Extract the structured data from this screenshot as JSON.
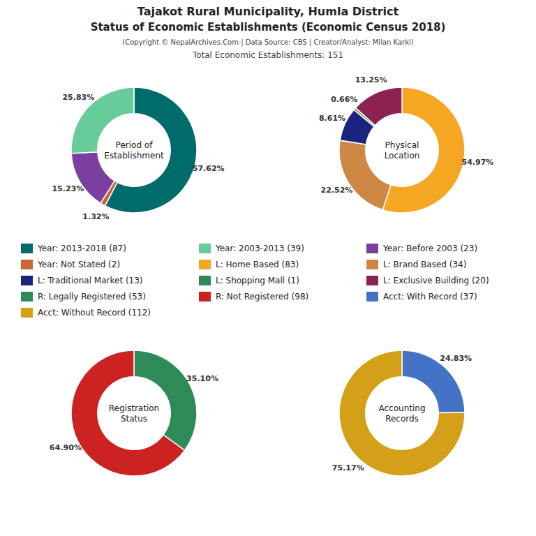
{
  "title": "Tajakot Rural Municipality, Humla District",
  "subtitle": "Status of Economic Establishments (Economic Census 2018)",
  "annotations": [
    "(Copyright © NepalArchives.Com | Data Source: CBS | Creator/Analyst: Milan Karki)",
    "Total Economic Establishments: 151"
  ],
  "legend_entries": [
    {
      "name": "Year: 2013-2018 (87)",
      "color": "#006B6B"
    },
    {
      "name": "Year: Not Stated (2)",
      "color": "#CC6633"
    },
    {
      "name": "L: Traditional Market (13)",
      "color": "#1A237E"
    },
    {
      "name": "R: Legally Registered (53)",
      "color": "#2E8B57"
    },
    {
      "name": "Acct: Without Record (112)",
      "color": "#D4A017"
    },
    {
      "name": "Year: 2003-2013 (39)",
      "color": "#66CC99"
    },
    {
      "name": "L: Home Based (83)",
      "color": "#F5A623"
    },
    {
      "name": "L: Shopping Mall (1)",
      "color": "#2E8B57"
    },
    {
      "name": "R: Not Registered (98)",
      "color": "#CC2222"
    },
    {
      "name": "Year: Before 2003 (23)",
      "color": "#7B3FA0"
    },
    {
      "name": "L: Brand Based (34)",
      "color": "#CC8844"
    },
    {
      "name": "L: Exclusive Building (20)",
      "color": "#8B2252"
    },
    {
      "name": "Acct: With Record (37)",
      "color": "#4472C4"
    }
  ],
  "chart_data": [
    {
      "type": "donut",
      "title": "Period of\nEstablishment",
      "values": [
        57.62,
        1.32,
        15.23,
        25.83
      ],
      "value_labels": [
        "57.62%",
        "1.32%",
        "15.23%",
        "25.83%"
      ],
      "colors": [
        "#006B6B",
        "#CC6633",
        "#7B3FA0",
        "#66CC99"
      ],
      "data_labels": true
    },
    {
      "type": "donut",
      "title": "Physical\nLocation",
      "values": [
        54.97,
        22.52,
        8.61,
        0.66,
        13.25
      ],
      "value_labels": [
        "54.97%",
        "22.52%",
        "8.61%",
        "0.66%",
        "13.25%"
      ],
      "colors": [
        "#F5A623",
        "#CC8844",
        "#1A237E",
        "#4CAF50",
        "#8B2252"
      ],
      "data_labels": true
    },
    {
      "type": "donut",
      "title": "Registration\nStatus",
      "values": [
        35.1,
        64.9
      ],
      "value_labels": [
        "35.10%",
        "64.90%"
      ],
      "colors": [
        "#2E8B57",
        "#CC2222"
      ],
      "data_labels": true
    },
    {
      "type": "donut",
      "title": "Accounting\nRecords",
      "values": [
        24.83,
        75.17
      ],
      "value_labels": [
        "24.83%",
        "75.17%"
      ],
      "colors": [
        "#4472C4",
        "#D4A017"
      ],
      "data_labels": true
    }
  ]
}
